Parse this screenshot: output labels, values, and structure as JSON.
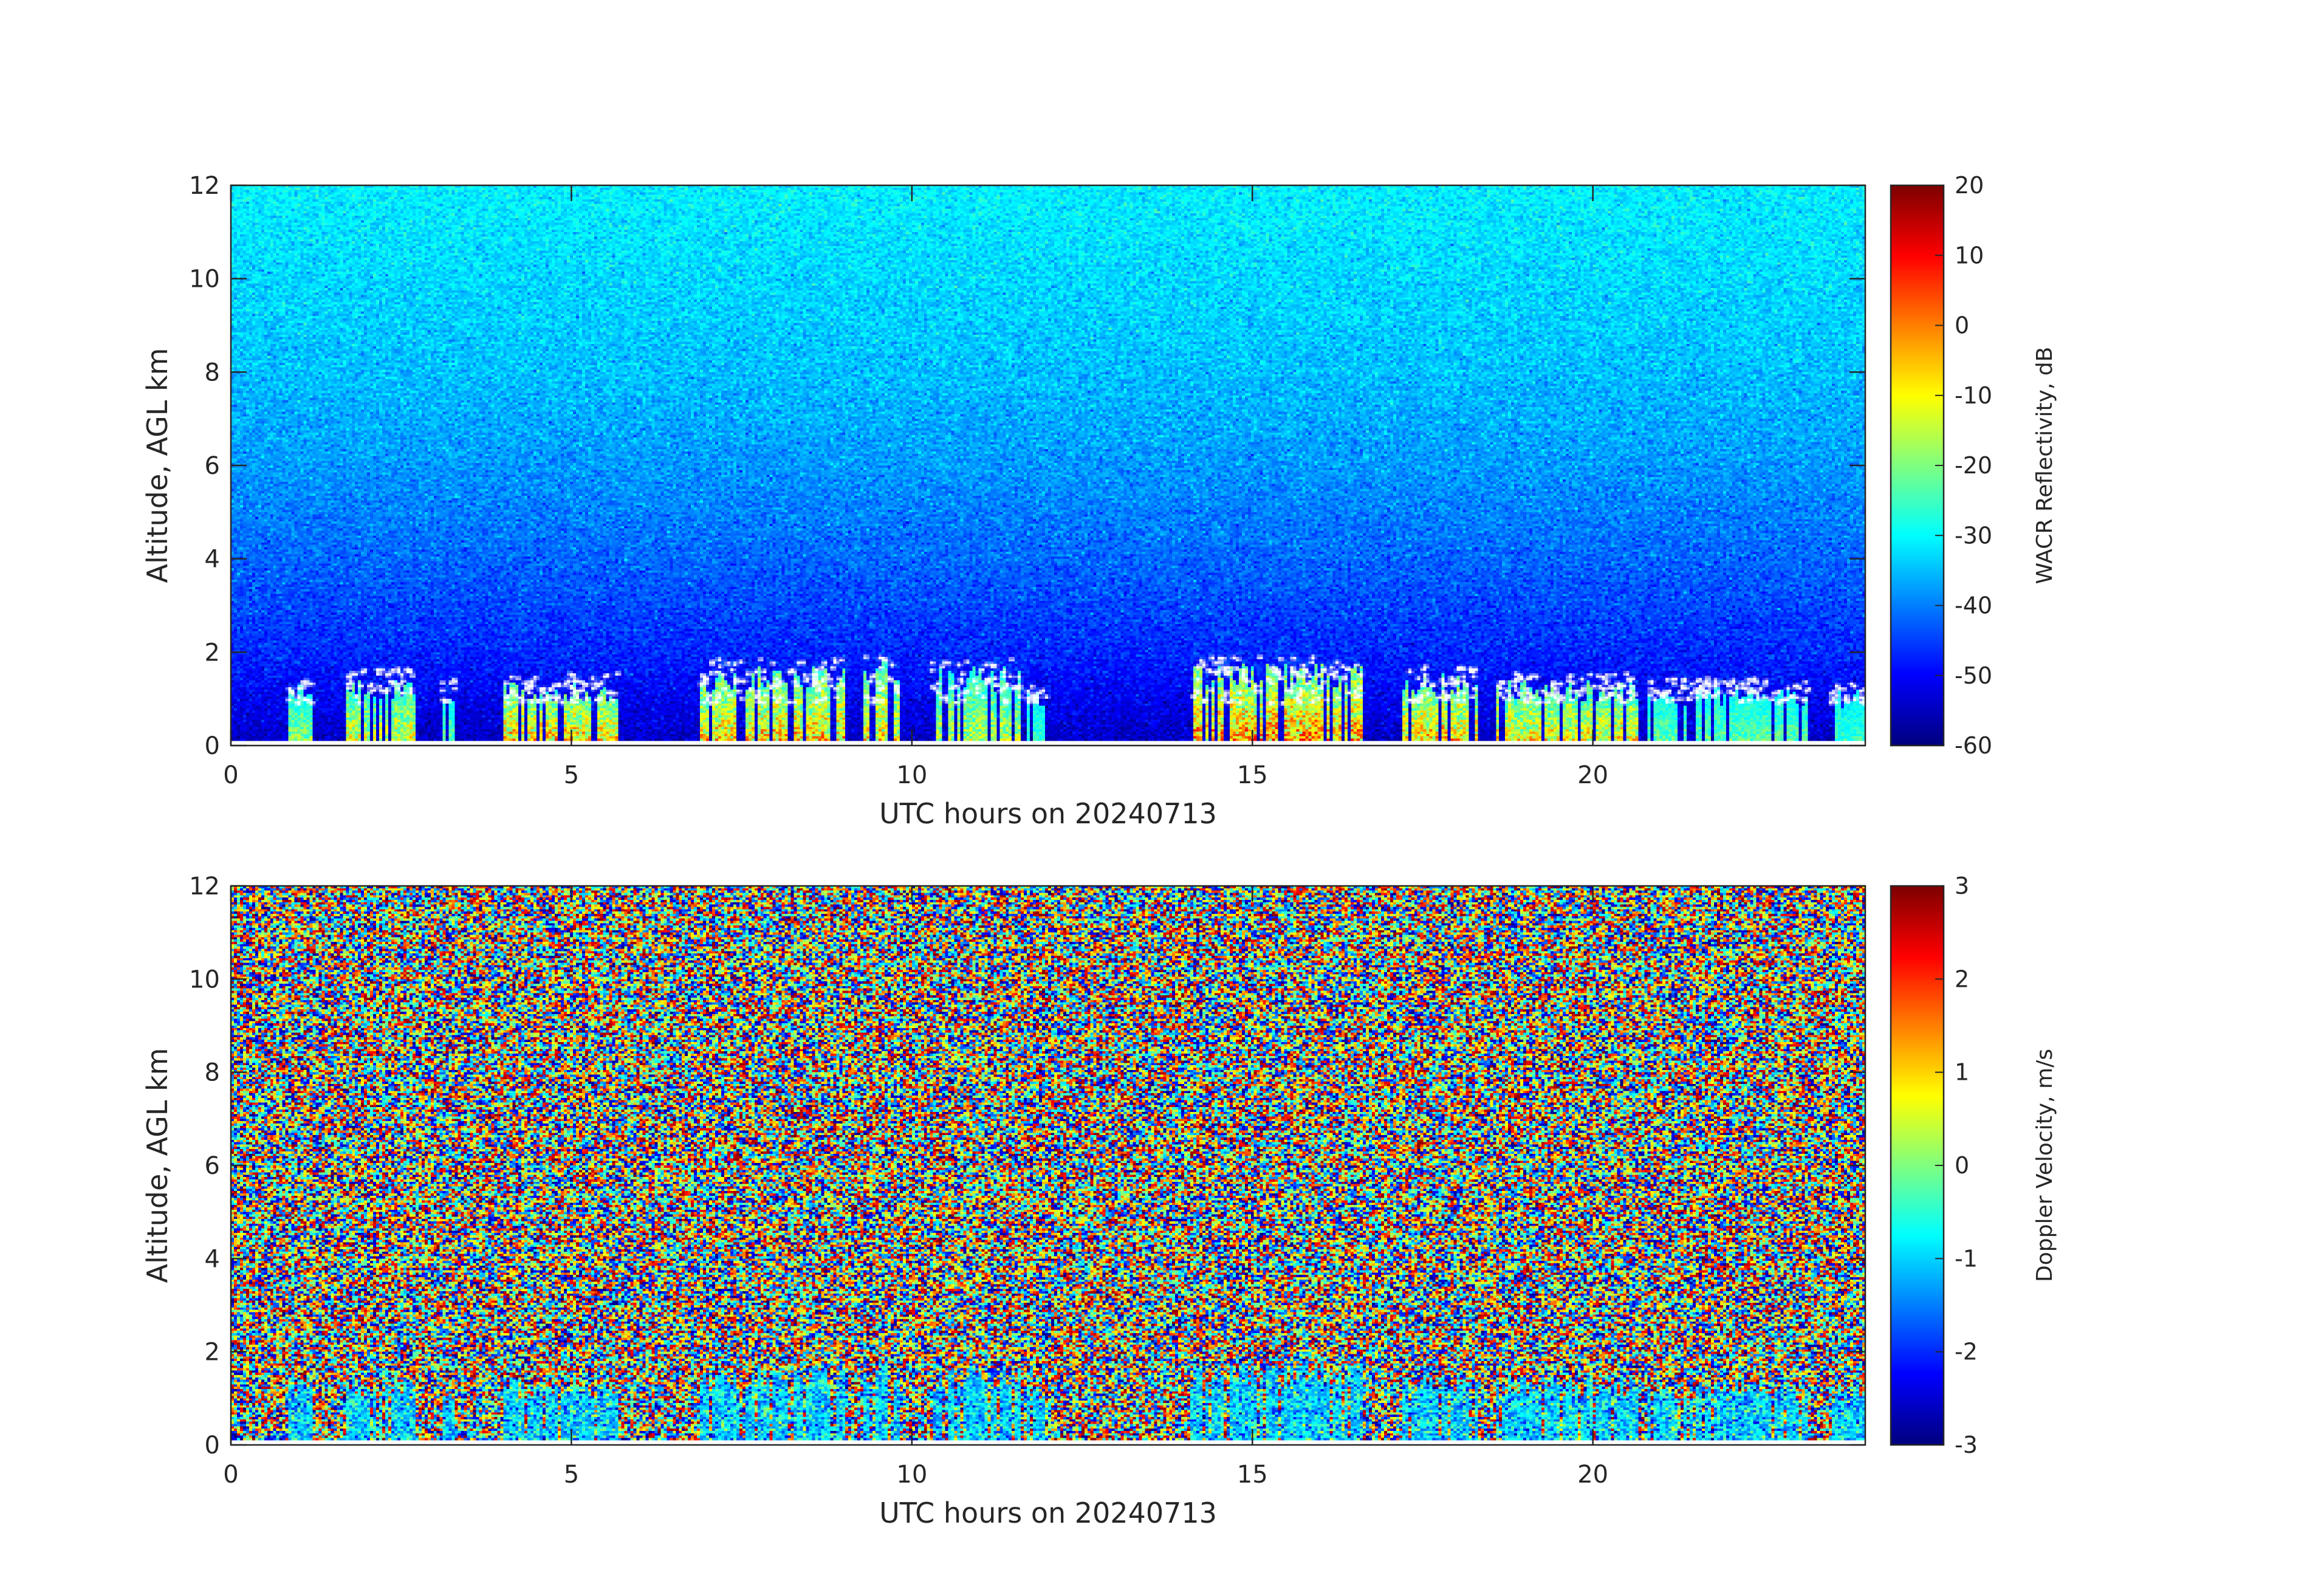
{
  "chart_data": [
    {
      "type": "heatmap",
      "xlabel": "UTC hours on 20240713",
      "ylabel": "Altitude, AGL km",
      "xlim": [
        0,
        24
      ],
      "ylim": [
        0,
        12
      ],
      "xticks": [
        "0",
        "5",
        "10",
        "15",
        "20"
      ],
      "yticks": [
        "0",
        "2",
        "4",
        "6",
        "8",
        "10",
        "12"
      ],
      "colorbar": {
        "label": "WACR Reflectivity, dB",
        "colormap": "jet",
        "range": [
          -60,
          20
        ],
        "ticks": [
          "20",
          "10",
          "0",
          "-10",
          "-20",
          "-30",
          "-40",
          "-50",
          "-60"
        ]
      },
      "background_noise_dB": {
        "altitude_km": [
          0,
          2,
          4,
          6,
          8,
          12
        ],
        "value": [
          -55,
          -47,
          -42,
          -38,
          -35,
          -31
        ]
      },
      "cloud_echoes": [
        {
          "x": [
            0.85,
            1.2
          ],
          "top_km": 1.3,
          "max_dB": -10
        },
        {
          "x": [
            1.7,
            2.7
          ],
          "top_km": 1.5,
          "max_dB": 0
        },
        {
          "x": [
            3.1,
            3.3
          ],
          "top_km": 1.3,
          "max_dB": -15
        },
        {
          "x": [
            4.0,
            5.7
          ],
          "top_km": 1.4,
          "max_dB": 10
        },
        {
          "x": [
            6.9,
            9.0
          ],
          "top_km": 1.7,
          "max_dB": 10
        },
        {
          "x": [
            9.3,
            9.8
          ],
          "top_km": 1.9,
          "max_dB": 5
        },
        {
          "x": [
            10.3,
            11.6
          ],
          "top_km": 1.7,
          "max_dB": -5
        },
        {
          "x": [
            11.7,
            12.0
          ],
          "top_km": 1.2,
          "max_dB": -20
        },
        {
          "x": [
            14.1,
            16.6
          ],
          "top_km": 1.8,
          "max_dB": 15
        },
        {
          "x": [
            17.2,
            18.3
          ],
          "top_km": 1.6,
          "max_dB": 10
        },
        {
          "x": [
            18.6,
            20.7
          ],
          "top_km": 1.4,
          "max_dB": 5
        },
        {
          "x": [
            20.8,
            23.2
          ],
          "top_km": 1.3,
          "max_dB": -15
        },
        {
          "x": [
            23.5,
            24.0
          ],
          "top_km": 1.2,
          "max_dB": -20
        }
      ],
      "cloud_base_markers": {
        "color": "#ffffff",
        "altitude_km_range": [
          0.9,
          1.9
        ]
      }
    },
    {
      "type": "heatmap",
      "xlabel": "UTC hours on 20240713",
      "ylabel": "Altitude, AGL km",
      "xlim": [
        0,
        24
      ],
      "ylim": [
        0,
        12
      ],
      "xticks": [
        "0",
        "5",
        "10",
        "15",
        "20"
      ],
      "yticks": [
        "0",
        "2",
        "4",
        "6",
        "8",
        "10",
        "12"
      ],
      "colorbar": {
        "label": "Doppler Velocity, m/s",
        "colormap": "jet",
        "range": [
          -3,
          3
        ],
        "ticks": [
          "3",
          "2",
          "1",
          "0",
          "-1",
          "-2",
          "-3"
        ]
      },
      "background": "random noise over full range (-3 to 3 m/s)",
      "cloud_velocity_m_s": -1.0,
      "cloud_echoes": [
        {
          "x": [
            0.85,
            1.2
          ],
          "top_km": 1.4
        },
        {
          "x": [
            1.7,
            2.7
          ],
          "top_km": 1.5
        },
        {
          "x": [
            3.1,
            3.3
          ],
          "top_km": 1.3
        },
        {
          "x": [
            4.0,
            5.7
          ],
          "top_km": 1.5
        },
        {
          "x": [
            6.9,
            9.0
          ],
          "top_km": 1.7
        },
        {
          "x": [
            9.3,
            9.8
          ],
          "top_km": 1.8
        },
        {
          "x": [
            10.3,
            11.6
          ],
          "top_km": 1.7
        },
        {
          "x": [
            11.7,
            12.0
          ],
          "top_km": 1.3
        },
        {
          "x": [
            14.1,
            16.6
          ],
          "top_km": 1.8
        },
        {
          "x": [
            17.2,
            18.3
          ],
          "top_km": 1.6
        },
        {
          "x": [
            18.6,
            20.7
          ],
          "top_km": 1.5
        },
        {
          "x": [
            20.8,
            23.2
          ],
          "top_km": 1.4
        },
        {
          "x": [
            23.5,
            24.0
          ],
          "top_km": 1.3
        }
      ]
    }
  ]
}
